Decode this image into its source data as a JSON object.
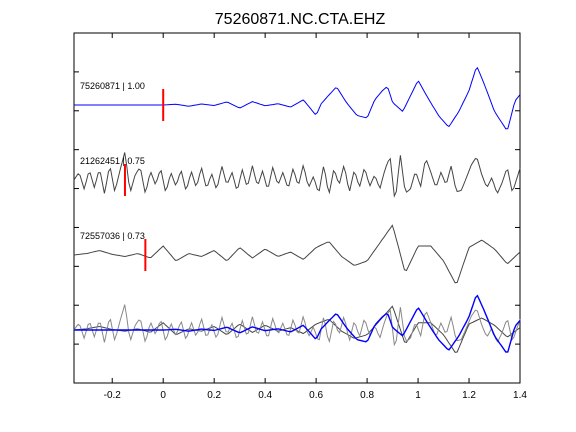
{
  "chart_data": {
    "type": "line",
    "title": "75260871.NC.CTA.EHZ",
    "xlabel": "",
    "ylabel": "",
    "xlim": [
      -0.35,
      1.4
    ],
    "xticks": [
      -0.2,
      0,
      0.2,
      0.4,
      0.6,
      0.8,
      1.0,
      1.2,
      1.4
    ],
    "xtick_labels": [
      "-0.2",
      "0",
      "0.2",
      "0.4",
      "0.6",
      "0.8",
      "1",
      "1.2",
      "1.4"
    ],
    "y_tick_count": 8,
    "grid": false,
    "traces": [
      {
        "label": "75260871 | 1.00",
        "color": "#0000ff",
        "pick_x": 0.0,
        "pick_color": "#ff0000",
        "x": [
          -0.35,
          0,
          0.05,
          0.1,
          0.15,
          0.2,
          0.25,
          0.3,
          0.35,
          0.4,
          0.45,
          0.5,
          0.55,
          0.6,
          0.62,
          0.65,
          0.68,
          0.72,
          0.76,
          0.8,
          0.83,
          0.86,
          0.88,
          0.9,
          0.94,
          0.98,
          1.0,
          1.04,
          1.08,
          1.12,
          1.16,
          1.2,
          1.23,
          1.26,
          1.3,
          1.35,
          1.38,
          1.4
        ],
        "y": [
          0,
          0,
          0.03,
          -0.05,
          0.04,
          -0.02,
          0.12,
          -0.12,
          0.13,
          -0.03,
          0.05,
          -0.08,
          0.2,
          -0.4,
          0.05,
          0.38,
          0.7,
          0.08,
          -0.4,
          -0.5,
          0.2,
          0.55,
          0.72,
          0.1,
          -0.25,
          0.55,
          0.95,
          0.25,
          -0.4,
          -0.85,
          -0.25,
          0.55,
          1.5,
          0.8,
          -0.25,
          -1.0,
          0.15,
          0.4
        ]
      },
      {
        "label": "21262451 | 0.75",
        "color": "#444444",
        "pick_x": -0.15,
        "pick_color": "#ff0000",
        "x": [
          -0.35,
          -0.33,
          -0.31,
          -0.29,
          -0.27,
          -0.25,
          -0.23,
          -0.21,
          -0.19,
          -0.17,
          -0.15,
          -0.13,
          -0.11,
          -0.09,
          -0.07,
          -0.05,
          -0.03,
          -0.01,
          0.01,
          0.03,
          0.05,
          0.07,
          0.09,
          0.11,
          0.13,
          0.15,
          0.17,
          0.19,
          0.21,
          0.23,
          0.25,
          0.27,
          0.29,
          0.31,
          0.33,
          0.35,
          0.37,
          0.39,
          0.41,
          0.43,
          0.45,
          0.47,
          0.49,
          0.51,
          0.53,
          0.55,
          0.57,
          0.59,
          0.61,
          0.63,
          0.65,
          0.67,
          0.69,
          0.71,
          0.73,
          0.75,
          0.77,
          0.79,
          0.81,
          0.83,
          0.85,
          0.87,
          0.89,
          0.91,
          0.93,
          0.95,
          0.97,
          0.99,
          1.01,
          1.03,
          1.05,
          1.07,
          1.09,
          1.11,
          1.13,
          1.15,
          1.17,
          1.19,
          1.21,
          1.23,
          1.25,
          1.27,
          1.29,
          1.31,
          1.33,
          1.35,
          1.37,
          1.4
        ],
        "y": [
          0,
          0.3,
          -0.35,
          0.4,
          -0.3,
          0.45,
          -0.55,
          0.6,
          -0.45,
          0.35,
          1.1,
          -0.5,
          0.2,
          0.5,
          -0.55,
          0.35,
          -0.2,
          0.45,
          -0.5,
          0.3,
          -0.25,
          0.4,
          -0.45,
          0.35,
          -0.3,
          0.5,
          -0.35,
          0.25,
          -0.4,
          0.55,
          -0.2,
          0.3,
          -0.45,
          0.4,
          -0.3,
          0.55,
          -0.25,
          0.35,
          -0.4,
          0.5,
          -0.2,
          0.3,
          -0.35,
          0.45,
          -0.25,
          0.6,
          -0.3,
          0.15,
          -0.55,
          0.6,
          -0.6,
          0.45,
          -0.2,
          0.6,
          -0.5,
          0.4,
          -0.3,
          0.5,
          -0.25,
          0.2,
          -0.35,
          0.4,
          0.9,
          -0.9,
          1.0,
          -0.5,
          -0.35,
          0.35,
          -0.25,
          0.85,
          0.3,
          -0.3,
          0.3,
          -0.2,
          0.55,
          -0.45,
          -0.4,
          0.1,
          0.6,
          0.9,
          0.2,
          -0.3,
          0.1,
          -0.55,
          -0.1,
          0.5,
          -0.5,
          0.45
        ]
      },
      {
        "label": "72557036 | 0.73",
        "color": "#444444",
        "pick_x": -0.07,
        "pick_color": "#ff0000",
        "x": [
          -0.35,
          -0.3,
          -0.25,
          -0.2,
          -0.15,
          -0.1,
          -0.05,
          0.0,
          0.05,
          0.1,
          0.15,
          0.2,
          0.25,
          0.3,
          0.35,
          0.4,
          0.45,
          0.5,
          0.55,
          0.6,
          0.65,
          0.7,
          0.75,
          0.8,
          0.85,
          0.9,
          0.95,
          1.0,
          1.05,
          1.1,
          1.15,
          1.2,
          1.25,
          1.3,
          1.35,
          1.4
        ],
        "y": [
          0,
          0.05,
          0.15,
          0.02,
          -0.05,
          0.05,
          -0.1,
          0.3,
          -0.2,
          0.05,
          -0.05,
          0.15,
          -0.2,
          0.25,
          -0.1,
          0.2,
          -0.05,
          0.1,
          -0.15,
          0.25,
          0.45,
          -0.05,
          -0.35,
          -0.2,
          0.4,
          1.0,
          -0.6,
          0.3,
          0.3,
          -0.2,
          -1.0,
          0.25,
          0.5,
          0.2,
          -0.3,
          0.1
        ]
      }
    ],
    "overlay": {
      "description_label": "",
      "colors": [
        "#0000ff",
        "#444444",
        "#888888"
      ]
    }
  },
  "axes": {
    "frame_color": "#000000"
  }
}
